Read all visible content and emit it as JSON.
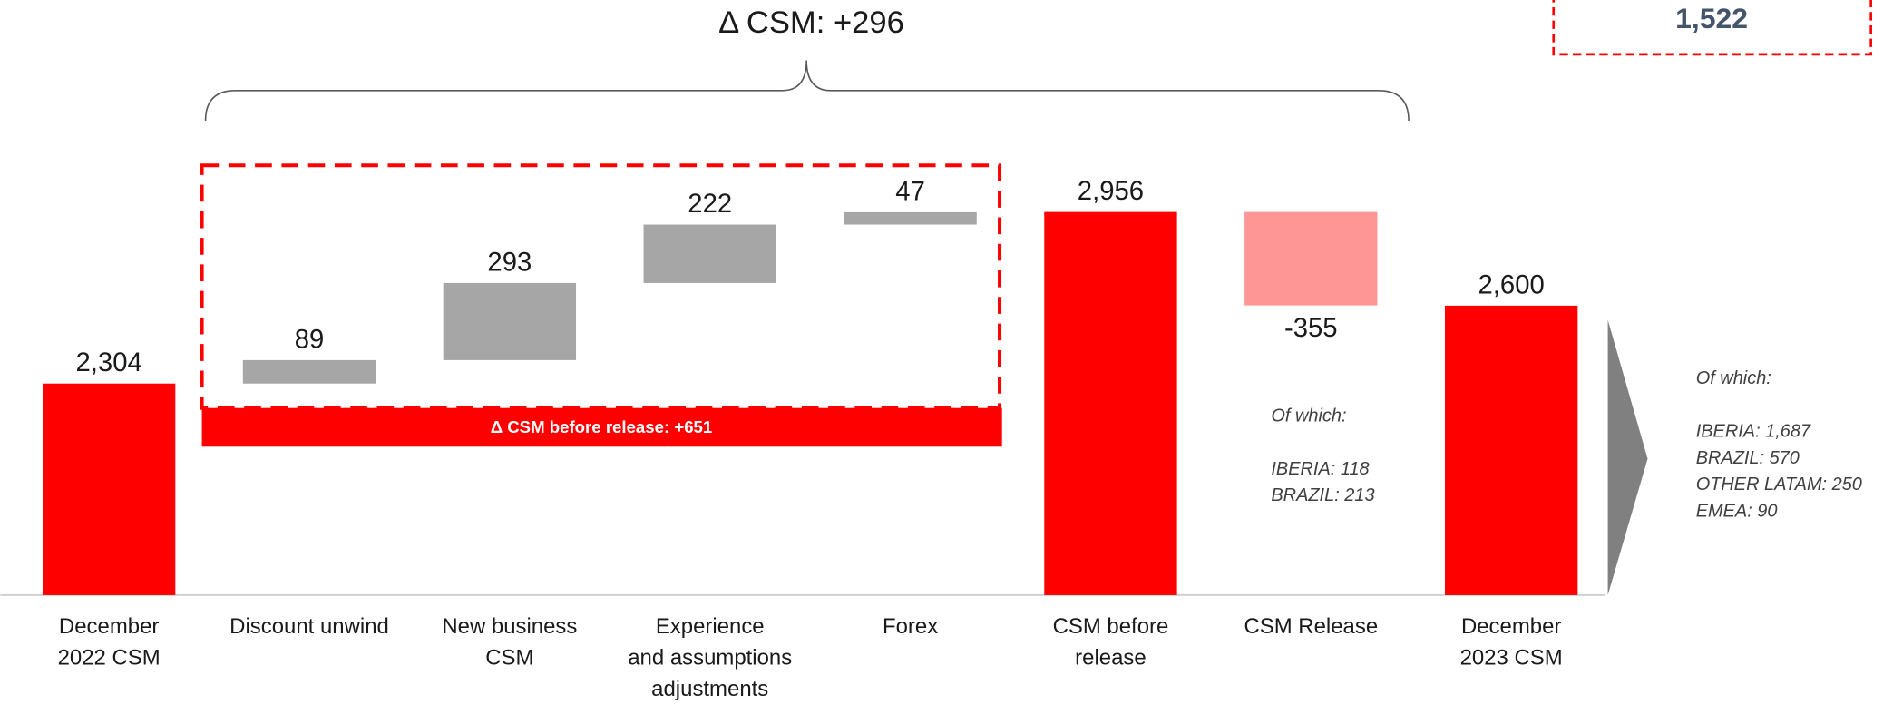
{
  "chart_data": {
    "type": "waterfall",
    "title": "Δ CSM: +296",
    "categories": [
      "December\n2022 CSM",
      "Discount unwind",
      "New business\nCSM",
      "Experience\nand assumptions\nadjustments",
      "Forex",
      "CSM before\nrelease",
      "CSM Release",
      "December\n2023 CSM"
    ],
    "values": [
      2304,
      89,
      293,
      222,
      47,
      2956,
      -355,
      2600
    ],
    "value_labels": [
      "2,304",
      "89",
      "293",
      "222",
      "47",
      "2,956",
      "-355",
      "2,600"
    ],
    "totals": [
      true,
      false,
      false,
      false,
      false,
      true,
      false,
      true
    ],
    "colors": [
      "#ff0000",
      "#a6a6a6",
      "#a6a6a6",
      "#a6a6a6",
      "#a6a6a6",
      "#ff0000",
      "#ff9696",
      "#ff0000"
    ],
    "ylim": [
      1500,
      3000
    ],
    "group_label": "Δ CSM before release: +651",
    "corner_value": "1,522",
    "notes": [
      {
        "title": "Of which:",
        "lines": [
          "IBERIA: 118",
          "BRAZIL: 213"
        ]
      },
      {
        "title": "Of which:",
        "lines": [
          "IBERIA: 1,687",
          "BRAZIL: 570",
          "OTHER LATAM: 250",
          "EMEA: 90"
        ]
      }
    ]
  }
}
